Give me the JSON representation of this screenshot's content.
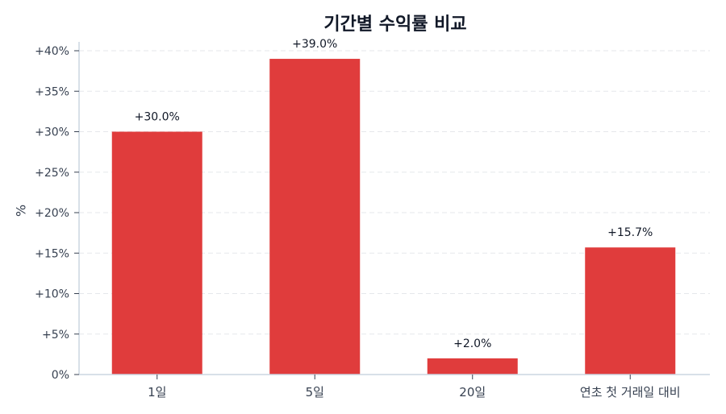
{
  "chart_data": {
    "type": "bar",
    "title": "기간별 수익률 비교",
    "xlabel": "",
    "ylabel": "%",
    "categories": [
      "1일",
      "5일",
      "20일",
      "연초 첫 거래일 대비"
    ],
    "values": [
      30.0,
      39.0,
      2.0,
      15.7
    ],
    "data_labels": [
      "+30.0%",
      "+39.0%",
      "+2.0%",
      "+15.7%"
    ],
    "ylim": [
      0,
      41
    ],
    "yticks": [
      0,
      5,
      10,
      15,
      20,
      25,
      30,
      35,
      40
    ],
    "ytick_labels": [
      "0%",
      "+5%",
      "+10%",
      "+15%",
      "+20%",
      "+25%",
      "+30%",
      "+35%",
      "+40%"
    ],
    "grid": "horizontal dashed",
    "legend": null,
    "bar_color": "#e03c3c"
  }
}
